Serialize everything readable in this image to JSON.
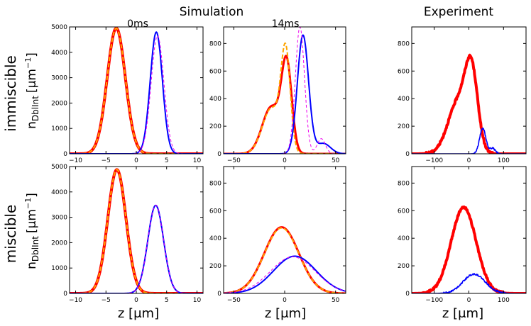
{
  "headers": {
    "simulation": "Simulation",
    "experiment": "Experiment"
  },
  "columns": [
    "0ms",
    "14ms"
  ],
  "rows": [
    "immiscible",
    "miscible"
  ],
  "ylabel_main": "n",
  "ylabel_sub": "DblInt",
  "ylabel_unit": "[μm",
  "ylabel_exp": "−1",
  "ylabel_close": "]",
  "xlabel": "z [μm]",
  "colors": {
    "red": "#ff0000",
    "orange": "#ffa500",
    "blue": "#0000ff",
    "magenta": "#ee00ee"
  },
  "chart_data": [
    {
      "id": "imm-0ms",
      "type": "line",
      "xlim": [
        -11,
        11
      ],
      "ylim": [
        0,
        5000
      ],
      "xticks": [
        -10,
        -5,
        0,
        5,
        10
      ],
      "yticks": [
        0,
        1000,
        2000,
        3000,
        4000,
        5000
      ],
      "series": [
        {
          "name": "sim-red",
          "color": "#ff0000",
          "width": 4,
          "dash": "",
          "gauss": [
            [
              4950,
              -3.3,
              1.5
            ]
          ]
        },
        {
          "name": "sim-orange",
          "color": "#ffa500",
          "width": 2,
          "dash": "6 3",
          "gauss": [
            [
              4950,
              -3.3,
              1.5
            ]
          ]
        },
        {
          "name": "sim-blue",
          "color": "#0000ff",
          "width": 2,
          "dash": "",
          "gauss": [
            [
              4800,
              3.3,
              1.0
            ]
          ]
        },
        {
          "name": "sim-magenta",
          "color": "#ee00ee",
          "width": 1,
          "dash": "4 3",
          "gauss": [
            [
              4650,
              3.5,
              1.05
            ]
          ]
        }
      ]
    },
    {
      "id": "imm-14ms",
      "type": "line",
      "xlim": [
        -60,
        60
      ],
      "ylim": [
        0,
        920
      ],
      "xticks": [
        -50,
        0,
        50
      ],
      "yticks": [
        0,
        200,
        400,
        600,
        800
      ],
      "series": [
        {
          "name": "sim-red",
          "color": "#ff0000",
          "width": 3,
          "dash": "",
          "gauss": [
            [
              340,
              -13,
              9
            ],
            [
              620,
              2,
              5
            ]
          ]
        },
        {
          "name": "sim-orange",
          "color": "#ffa500",
          "width": 2,
          "dash": "6 3",
          "gauss": [
            [
              330,
              -13,
              9
            ],
            [
              700,
              1,
              4.5
            ]
          ]
        },
        {
          "name": "sim-blue",
          "color": "#0000ff",
          "width": 2,
          "dash": "",
          "gauss": [
            [
              860,
              18,
              5.5
            ],
            [
              75,
              38,
              7
            ]
          ]
        },
        {
          "name": "sim-magenta",
          "color": "#ee00ee",
          "width": 1,
          "dash": "4 3",
          "gauss": [
            [
              920,
              15,
              4.5
            ],
            [
              110,
              36,
              4
            ]
          ]
        }
      ]
    },
    {
      "id": "imm-exp",
      "type": "line",
      "xlim": [
        -165,
        165
      ],
      "ylim": [
        0,
        920
      ],
      "xticks": [
        -100,
        0,
        100
      ],
      "yticks": [
        0,
        200,
        400,
        600,
        800
      ],
      "series": [
        {
          "name": "exp-red",
          "color": "#ff0000",
          "width": 4,
          "dash": "",
          "noise": 8,
          "gauss": [
            [
              380,
              -30,
              30
            ],
            [
              520,
              8,
              18
            ]
          ]
        },
        {
          "name": "exp-blue",
          "color": "#0000ff",
          "width": 1.6,
          "dash": "",
          "noise": 6,
          "gauss": [
            [
              185,
              40,
              9
            ],
            [
              40,
              68,
              8
            ]
          ]
        }
      ]
    },
    {
      "id": "mis-0ms",
      "type": "line",
      "xlim": [
        -11,
        11
      ],
      "ylim": [
        0,
        5000
      ],
      "xticks": [
        -10,
        -5,
        0,
        5,
        10
      ],
      "yticks": [
        0,
        1000,
        2000,
        3000,
        4000,
        5000
      ],
      "series": [
        {
          "name": "sim-red",
          "color": "#ff0000",
          "width": 4,
          "dash": "",
          "gauss": [
            [
              4880,
              -3.2,
              1.5
            ]
          ]
        },
        {
          "name": "sim-orange",
          "color": "#ffa500",
          "width": 2,
          "dash": "6 3",
          "gauss": [
            [
              4880,
              -3.2,
              1.5
            ]
          ]
        },
        {
          "name": "sim-blue",
          "color": "#0000ff",
          "width": 2,
          "dash": "",
          "gauss": [
            [
              3470,
              3.2,
              1.3
            ]
          ]
        },
        {
          "name": "sim-magenta",
          "color": "#ee00ee",
          "width": 1,
          "dash": "4 3",
          "gauss": [
            [
              3470,
              3.2,
              1.3
            ]
          ]
        }
      ]
    },
    {
      "id": "mis-14ms",
      "type": "line",
      "xlim": [
        -60,
        60
      ],
      "ylim": [
        0,
        920
      ],
      "xticks": [
        -50,
        0,
        50
      ],
      "yticks": [
        0,
        200,
        400,
        600,
        800
      ],
      "series": [
        {
          "name": "sim-red",
          "color": "#ff0000",
          "width": 3,
          "dash": "",
          "gauss": [
            [
              480,
              -3,
              17
            ]
          ]
        },
        {
          "name": "sim-orange",
          "color": "#ffa500",
          "width": 2,
          "dash": "6 3",
          "gauss": [
            [
              475,
              -3,
              17
            ]
          ]
        },
        {
          "name": "sim-blue",
          "color": "#0000ff",
          "width": 2,
          "dash": "",
          "gauss": [
            [
              270,
              10,
              21
            ]
          ]
        },
        {
          "name": "sim-magenta",
          "color": "#ee00ee",
          "width": 1,
          "dash": "4 3",
          "gauss": [
            [
              265,
              8,
              22
            ]
          ]
        }
      ]
    },
    {
      "id": "mis-exp",
      "type": "line",
      "xlim": [
        -165,
        165
      ],
      "ylim": [
        0,
        920
      ],
      "xticks": [
        -100,
        0,
        100
      ],
      "yticks": [
        0,
        200,
        400,
        600,
        800
      ],
      "series": [
        {
          "name": "exp-red",
          "color": "#ff0000",
          "width": 4,
          "dash": "",
          "noise": 8,
          "gauss": [
            [
              625,
              -15,
              36
            ]
          ]
        },
        {
          "name": "exp-blue",
          "color": "#0000ff",
          "width": 1.6,
          "dash": "",
          "noise": 6,
          "gauss": [
            [
              140,
              15,
              32
            ]
          ]
        }
      ]
    }
  ]
}
